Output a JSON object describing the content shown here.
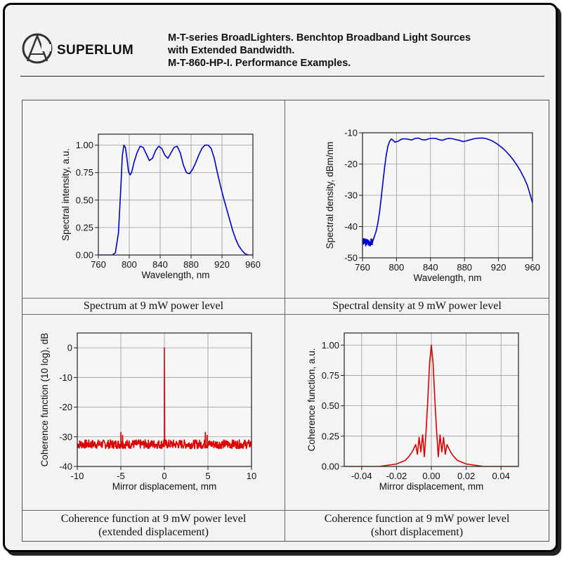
{
  "brand": {
    "name": "SUPERLUM"
  },
  "header": {
    "line1": "M-T-series BroadLighters. Benchtop Broadband Light Sources",
    "line2": "with Extended Bandwidth.",
    "line3": "M-T-860-HP-I. Performance Examples."
  },
  "captions": {
    "spectrum": "Spectrum at 9 mW power level",
    "density": "Spectral density at 9 mW power level",
    "coh_ext_1": "Coherence function at 9 mW power level",
    "coh_ext_2": "(extended displacement)",
    "coh_short_1": "Coherence function at 9 mW power level",
    "coh_short_2": "(short displacement)"
  },
  "chart_data": [
    {
      "id": "spectrum",
      "type": "line",
      "color": "#0000cc",
      "xlabel": "Wavelength, nm",
      "ylabel": "Spectral intensity, a.u.",
      "xlim": [
        760,
        960
      ],
      "ylim": [
        0,
        1.1
      ],
      "xticks": [
        760,
        800,
        840,
        880,
        920,
        960
      ],
      "yticks": [
        0.0,
        0.25,
        0.5,
        0.75,
        1.0
      ],
      "ytick_labels": [
        "0.00",
        "0.25",
        "0.50",
        "0.75",
        "1.00"
      ],
      "grid": true,
      "x": [
        760,
        778,
        782,
        786,
        789,
        791,
        793,
        795,
        797,
        799,
        801,
        803,
        806,
        810,
        814,
        818,
        822,
        826,
        830,
        834,
        838,
        842,
        846,
        850,
        854,
        858,
        862,
        866,
        870,
        874,
        878,
        882,
        886,
        890,
        894,
        898,
        902,
        906,
        910,
        914,
        918,
        922,
        926,
        930,
        934,
        938,
        942,
        946,
        950,
        954,
        960
      ],
      "y": [
        0,
        0,
        0.02,
        0.2,
        0.6,
        0.9,
        1.0,
        0.98,
        0.88,
        0.76,
        0.73,
        0.75,
        0.84,
        0.93,
        0.99,
        0.98,
        0.92,
        0.86,
        0.88,
        0.95,
        0.99,
        0.97,
        0.91,
        0.88,
        0.93,
        0.98,
        0.99,
        0.93,
        0.82,
        0.75,
        0.74,
        0.78,
        0.84,
        0.91,
        0.97,
        1.0,
        1.0,
        0.97,
        0.88,
        0.75,
        0.63,
        0.52,
        0.42,
        0.32,
        0.22,
        0.14,
        0.08,
        0.04,
        0.01,
        0,
        0
      ]
    },
    {
      "id": "density",
      "type": "line",
      "color": "#0000cc",
      "xlabel": "Wavelength, nm",
      "ylabel": "Spectral density, dBm/nm",
      "xlim": [
        760,
        960
      ],
      "ylim": [
        -50,
        -10
      ],
      "xticks": [
        760,
        800,
        840,
        880,
        920,
        960
      ],
      "yticks": [
        -50,
        -40,
        -30,
        -20,
        -10
      ],
      "ytick_labels": [
        "-50",
        "-40",
        "-30",
        "-20",
        "-10"
      ],
      "grid": true,
      "noise_region": [
        760,
        772,
        -45,
        1.2
      ],
      "x": [
        760,
        764,
        768,
        772,
        774,
        776,
        778,
        780,
        782,
        784,
        786,
        788,
        790,
        792,
        794,
        796,
        798,
        802,
        806,
        810,
        814,
        818,
        822,
        826,
        830,
        834,
        838,
        842,
        846,
        850,
        854,
        858,
        862,
        866,
        870,
        874,
        878,
        882,
        886,
        890,
        894,
        898,
        902,
        906,
        910,
        914,
        918,
        922,
        926,
        930,
        934,
        938,
        942,
        946,
        950,
        954,
        958,
        960
      ],
      "y": [
        -44.5,
        -44.7,
        -44.6,
        -44.3,
        -43.2,
        -41.5,
        -39.0,
        -35.5,
        -31.0,
        -26.0,
        -21.0,
        -17.0,
        -14.2,
        -12.7,
        -12.0,
        -12.4,
        -13.0,
        -12.7,
        -12.0,
        -11.9,
        -12.1,
        -12.3,
        -11.8,
        -11.7,
        -12.2,
        -12.3,
        -11.9,
        -11.8,
        -11.8,
        -12.2,
        -12.4,
        -12.0,
        -11.8,
        -11.9,
        -12.2,
        -12.4,
        -12.8,
        -12.6,
        -12.3,
        -12.0,
        -11.8,
        -11.7,
        -11.7,
        -11.9,
        -12.3,
        -12.8,
        -13.5,
        -14.3,
        -15.2,
        -16.3,
        -17.5,
        -18.9,
        -20.5,
        -22.3,
        -24.4,
        -26.8,
        -30.5,
        -32.5
      ]
    },
    {
      "id": "coherence_extended",
      "type": "line",
      "color": "#dd0000",
      "xlabel": "Mirror displacement, mm",
      "ylabel": "Coherence function (10 log), dB",
      "xlim": [
        -10,
        10
      ],
      "ylim": [
        -40,
        5
      ],
      "xticks": [
        -10,
        -5,
        0,
        5,
        10
      ],
      "yticks": [
        -40,
        -30,
        -20,
        -10,
        0
      ],
      "ytick_labels": [
        "-40",
        "-30",
        "-20",
        "-10",
        "0"
      ],
      "grid": true,
      "noise_floor": -32.5,
      "noise_amplitude": 1.5,
      "x": [
        -5.0,
        -4.8,
        -0.05,
        0.0,
        0.05,
        4.7,
        4.9
      ],
      "y": [
        -28.5,
        -29.5,
        -31.0,
        0.0,
        -31.0,
        -28.5,
        -29.5
      ]
    },
    {
      "id": "coherence_short",
      "type": "line",
      "color": "#dd0000",
      "xlabel": "Mirror displacement, mm",
      "ylabel": "Coherence function, a.u.",
      "xlim": [
        -0.05,
        0.05
      ],
      "ylim": [
        0,
        1.1
      ],
      "xticks": [
        -0.04,
        -0.02,
        0.0,
        0.02,
        0.04
      ],
      "xtick_labels": [
        "-0.04",
        "-0.02",
        "0.00",
        "0.02",
        "0.04"
      ],
      "yticks": [
        0.0,
        0.25,
        0.5,
        0.75,
        1.0
      ],
      "ytick_labels": [
        "0.00",
        "0.25",
        "0.50",
        "0.75",
        "1.00"
      ],
      "grid": true,
      "x": [
        -0.05,
        -0.03,
        -0.02,
        -0.015,
        -0.013,
        -0.011,
        -0.009,
        -0.008,
        -0.007,
        -0.006,
        -0.005,
        -0.004,
        -0.003,
        -0.002,
        -0.001,
        0.0,
        0.001,
        0.002,
        0.003,
        0.004,
        0.005,
        0.006,
        0.007,
        0.008,
        0.009,
        0.011,
        0.013,
        0.015,
        0.02,
        0.03,
        0.05
      ],
      "y": [
        0.0,
        0.0,
        0.02,
        0.05,
        0.08,
        0.12,
        0.18,
        0.1,
        0.24,
        0.12,
        0.26,
        0.08,
        0.3,
        0.55,
        0.85,
        1.0,
        0.85,
        0.55,
        0.3,
        0.08,
        0.26,
        0.12,
        0.24,
        0.1,
        0.18,
        0.12,
        0.08,
        0.05,
        0.02,
        0.0,
        0.0
      ]
    }
  ]
}
